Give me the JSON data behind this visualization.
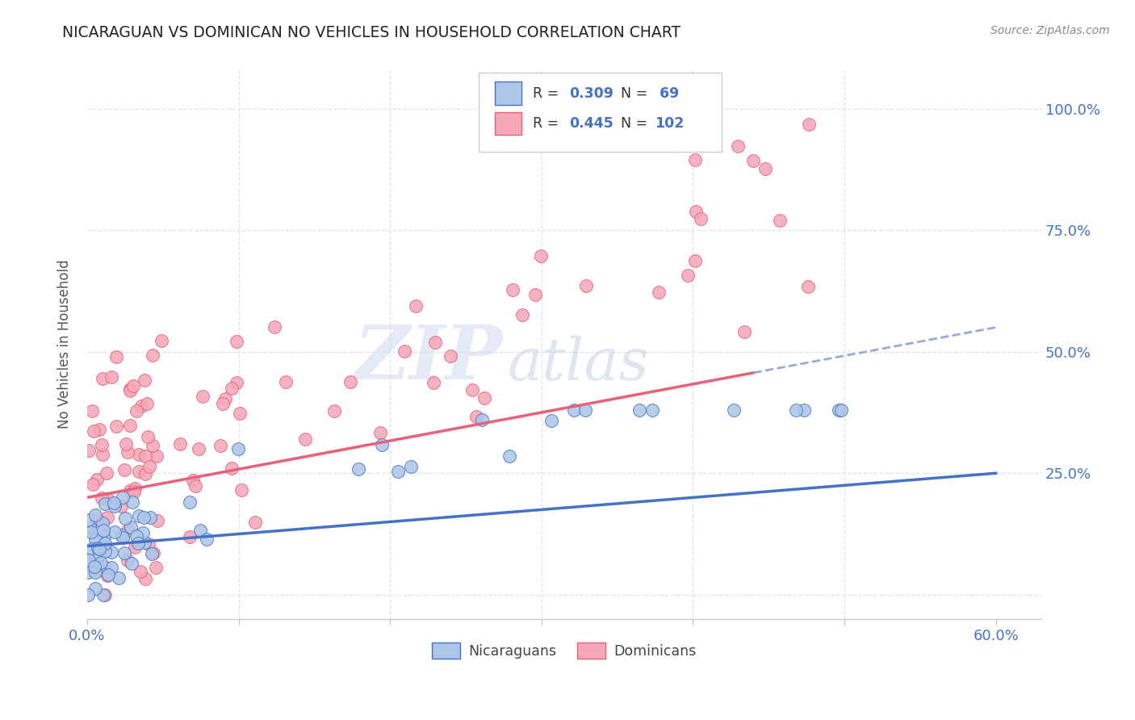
{
  "title": "NICARAGUAN VS DOMINICAN NO VEHICLES IN HOUSEHOLD CORRELATION CHART",
  "source": "Source: ZipAtlas.com",
  "ylabel": "No Vehicles in Household",
  "xlim": [
    0.0,
    0.63
  ],
  "ylim": [
    -0.05,
    1.08
  ],
  "watermark_zip": "ZIP",
  "watermark_atlas": "atlas",
  "nicaraguan_color": "#aec6e8",
  "dominican_color": "#f4a8b8",
  "trendline_nicaraguan_color": "#4472c4",
  "trendline_dominican_color": "#e8607a",
  "trendline_ext_color": "#9aaad0",
  "background_color": "#ffffff",
  "grid_color": "#dde3f0",
  "title_color": "#222222",
  "source_color": "#888888",
  "axis_label_color": "#4472c4",
  "legend_rn_color": "#4472c4",
  "legend_r_label_color": "#333333"
}
